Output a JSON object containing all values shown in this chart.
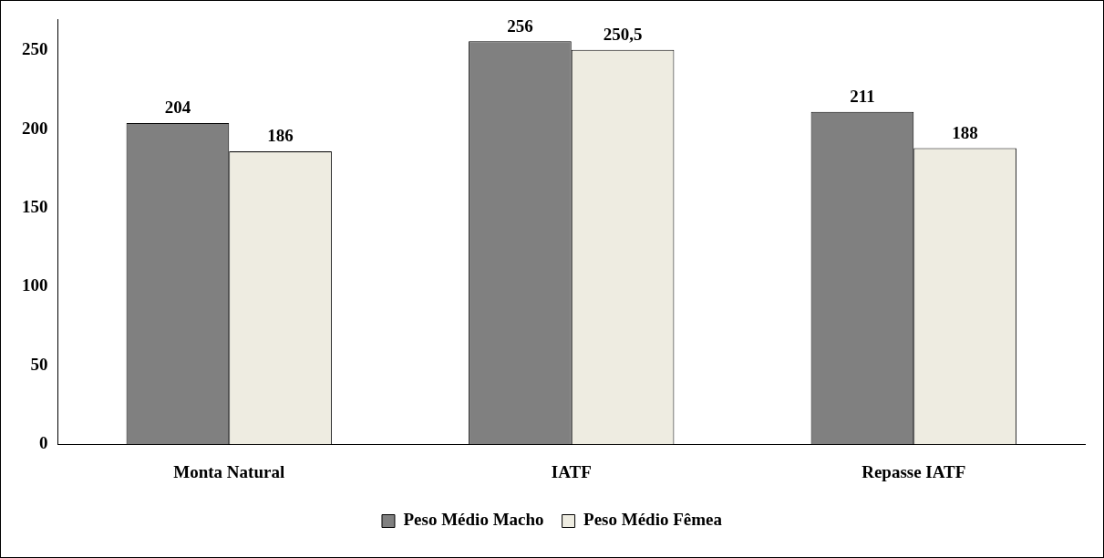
{
  "chart_data": {
    "type": "bar",
    "categories": [
      "Monta Natural",
      "IATF",
      "Repasse IATF"
    ],
    "series": [
      {
        "name": "Peso Médio Macho",
        "color": "#808080",
        "values": [
          204,
          256,
          211
        ],
        "value_labels": [
          "204",
          "256",
          "211"
        ]
      },
      {
        "name": "Peso Médio Fêmea",
        "color": "#eeece1",
        "values": [
          186,
          250.5,
          188
        ],
        "value_labels": [
          "186",
          "250,5",
          "188"
        ]
      }
    ],
    "ylim": [
      0,
      270
    ],
    "yticks": [
      0,
      50,
      100,
      150,
      200,
      250
    ],
    "grid": false,
    "legend": "bottom"
  }
}
